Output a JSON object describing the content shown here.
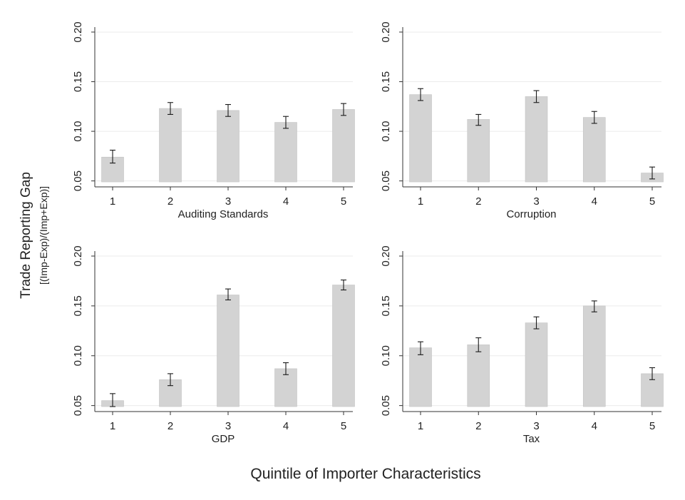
{
  "figure": {
    "ylabel_main": "Trade Reporting Gap",
    "ylabel_sub": "[(Imp-Exp)/(Imp+Exp)]",
    "xlabel": "Quintile of Importer Characteristics",
    "colors": {
      "bar": "#d3d3d3",
      "bar_edge": "#c4c4c4",
      "error": "#1a1a1a",
      "axis": "#333333",
      "grid": "#ebebeb",
      "text": "#222222"
    }
  },
  "chart_data": [
    {
      "type": "bar",
      "panel": "top-left",
      "xlabel": "Auditing Standards",
      "categories": [
        "1",
        "2",
        "3",
        "4",
        "5"
      ],
      "values": [
        0.074,
        0.123,
        0.121,
        0.109,
        0.122
      ],
      "error_low": [
        0.068,
        0.117,
        0.115,
        0.103,
        0.116
      ],
      "error_high": [
        0.081,
        0.129,
        0.127,
        0.115,
        0.128
      ],
      "baseline": 0.049,
      "ylim": [
        0.044,
        0.205
      ],
      "yticks": [
        0.05,
        0.1,
        0.15,
        0.2
      ],
      "ytick_labels": [
        "0.05",
        "0.10",
        "0.15",
        "0.20"
      ],
      "grid": true
    },
    {
      "type": "bar",
      "panel": "top-right",
      "xlabel": "Corruption",
      "categories": [
        "1",
        "2",
        "3",
        "4",
        "5"
      ],
      "values": [
        0.137,
        0.112,
        0.135,
        0.114,
        0.058
      ],
      "error_low": [
        0.131,
        0.106,
        0.129,
        0.108,
        0.052
      ],
      "error_high": [
        0.143,
        0.117,
        0.141,
        0.12,
        0.064
      ],
      "baseline": 0.049,
      "ylim": [
        0.044,
        0.205
      ],
      "yticks": [
        0.05,
        0.1,
        0.15,
        0.2
      ],
      "ytick_labels": [
        "0.05",
        "0.10",
        "0.15",
        "0.20"
      ],
      "grid": true
    },
    {
      "type": "bar",
      "panel": "bottom-left",
      "xlabel": "GDP",
      "categories": [
        "1",
        "2",
        "3",
        "4",
        "5"
      ],
      "values": [
        0.055,
        0.076,
        0.161,
        0.087,
        0.171
      ],
      "error_low": [
        0.049,
        0.07,
        0.156,
        0.081,
        0.166
      ],
      "error_high": [
        0.062,
        0.082,
        0.167,
        0.093,
        0.176
      ],
      "baseline": 0.049,
      "ylim": [
        0.044,
        0.205
      ],
      "yticks": [
        0.05,
        0.1,
        0.15,
        0.2
      ],
      "ytick_labels": [
        "0.05",
        "0.10",
        "0.15",
        "0.20"
      ],
      "grid": true
    },
    {
      "type": "bar",
      "panel": "bottom-right",
      "xlabel": "Tax",
      "categories": [
        "1",
        "2",
        "3",
        "4",
        "5"
      ],
      "values": [
        0.108,
        0.111,
        0.133,
        0.15,
        0.082
      ],
      "error_low": [
        0.101,
        0.104,
        0.127,
        0.144,
        0.076
      ],
      "error_high": [
        0.114,
        0.118,
        0.139,
        0.155,
        0.088
      ],
      "baseline": 0.049,
      "ylim": [
        0.044,
        0.205
      ],
      "yticks": [
        0.05,
        0.1,
        0.15,
        0.2
      ],
      "ytick_labels": [
        "0.05",
        "0.10",
        "0.15",
        "0.20"
      ],
      "grid": true
    }
  ]
}
